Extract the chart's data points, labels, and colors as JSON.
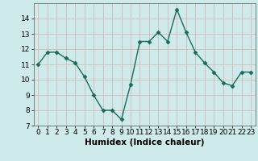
{
  "x": [
    0,
    1,
    2,
    3,
    4,
    5,
    6,
    7,
    8,
    9,
    10,
    11,
    12,
    13,
    14,
    15,
    16,
    17,
    18,
    19,
    20,
    21,
    22,
    23
  ],
  "y": [
    11.0,
    11.8,
    11.8,
    11.4,
    11.1,
    10.2,
    9.0,
    8.0,
    8.0,
    7.4,
    9.7,
    12.5,
    12.5,
    13.1,
    12.5,
    14.6,
    13.1,
    11.8,
    11.1,
    10.5,
    9.8,
    9.6,
    10.5,
    10.5
  ],
  "line_color": "#1a6b5a",
  "marker": "D",
  "marker_size": 2.5,
  "xlabel": "Humidex (Indice chaleur)",
  "xlim": [
    -0.5,
    23.5
  ],
  "ylim": [
    7,
    15
  ],
  "yticks": [
    7,
    8,
    9,
    10,
    11,
    12,
    13,
    14
  ],
  "xticks": [
    0,
    1,
    2,
    3,
    4,
    5,
    6,
    7,
    8,
    9,
    10,
    11,
    12,
    13,
    14,
    15,
    16,
    17,
    18,
    19,
    20,
    21,
    22,
    23
  ],
  "background_color": "#ceeaea",
  "grid_color": "#b8d8d8",
  "tick_fontsize": 6.5,
  "xlabel_fontsize": 7.5,
  "line_width": 1.0
}
